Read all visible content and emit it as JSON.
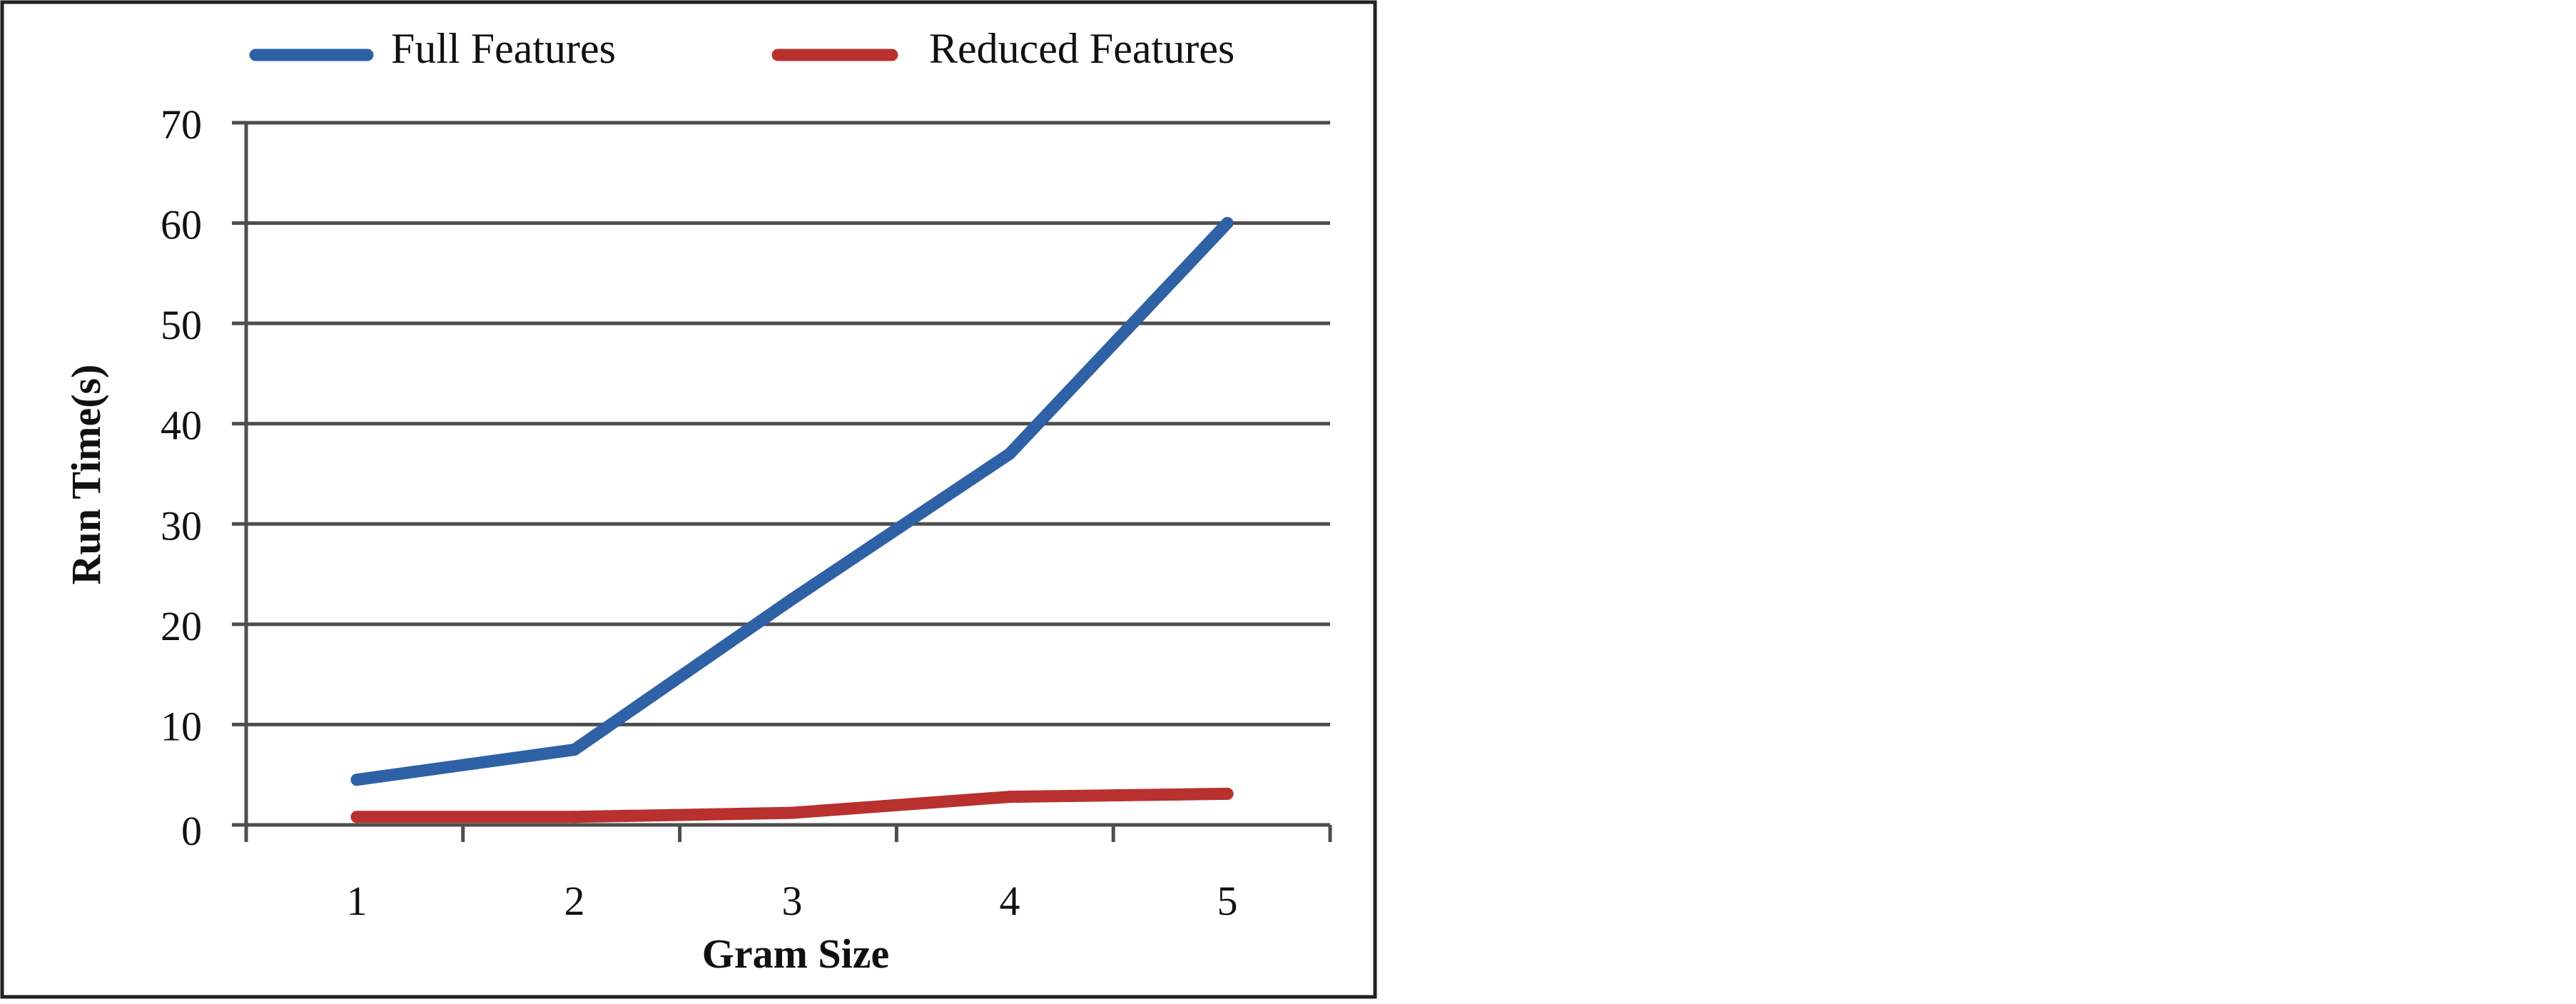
{
  "chart_data": {
    "type": "line",
    "title": "",
    "xlabel": "Gram Size",
    "ylabel": "Run Time(s)",
    "categories": [
      "1",
      "2",
      "3",
      "4",
      "5"
    ],
    "ylim": [
      0,
      70
    ],
    "yticks": [
      "0",
      "10",
      "20",
      "30",
      "40",
      "50",
      "60",
      "70"
    ],
    "grid": true,
    "legend_position": "top",
    "series": [
      {
        "name": "Full Features",
        "color": "#2e61a6",
        "values": [
          4.5,
          7.5,
          22.5,
          37,
          60
        ]
      },
      {
        "name": "Reduced Features",
        "color": "#b8312f",
        "values": [
          0.8,
          0.8,
          1.2,
          2.8,
          3.1
        ]
      }
    ]
  }
}
